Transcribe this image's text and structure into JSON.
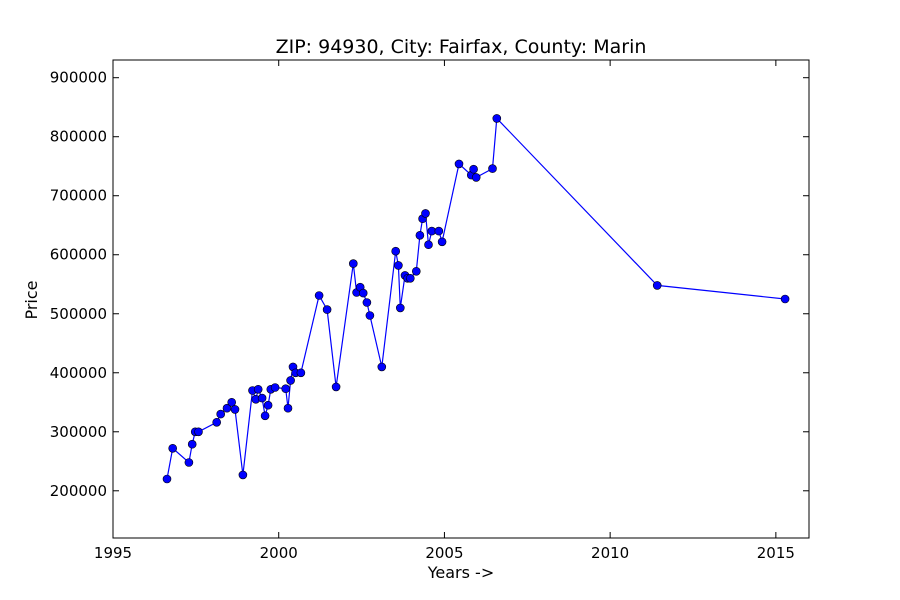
{
  "chart_data": {
    "type": "line",
    "title": "ZIP: 94930, City: Fairfax, County: Marin",
    "xlabel": "Years ->",
    "ylabel": "Price",
    "xlim": [
      1995,
      2016
    ],
    "ylim": [
      120000,
      930000
    ],
    "xticks": [
      1995,
      2000,
      2005,
      2010,
      2015
    ],
    "yticks": [
      200000,
      300000,
      400000,
      500000,
      600000,
      700000,
      800000,
      900000
    ],
    "grid": false,
    "line_color": "#0000ff",
    "marker_color": "#0000ff",
    "series": [
      {
        "x": [
          1996.63,
          1996.8,
          1997.29,
          1997.39,
          1997.48,
          1997.58,
          1998.13,
          1998.25,
          1998.44,
          1998.58,
          1998.68,
          1998.92,
          1999.21,
          1999.31,
          1999.38,
          1999.5,
          1999.59,
          1999.68,
          1999.76,
          1999.89,
          2000.21,
          2000.28,
          2000.36,
          2000.43,
          2000.51,
          2000.67,
          2001.22,
          2001.46,
          2001.73,
          2002.25,
          2002.35,
          2002.46,
          2002.55,
          2002.66,
          2002.75,
          2003.11,
          2003.53,
          2003.61,
          2003.67,
          2003.81,
          2003.89,
          2003.97,
          2004.15,
          2004.26,
          2004.34,
          2004.43,
          2004.52,
          2004.62,
          2004.83,
          2004.93,
          2005.44,
          2005.81,
          2005.88,
          2005.96,
          2006.45,
          2006.58,
          2011.42,
          2015.28
        ],
        "y": [
          220000,
          272000,
          248000,
          279000,
          300000,
          300000,
          316000,
          330000,
          340000,
          350000,
          338000,
          227000,
          370000,
          355000,
          372000,
          357000,
          327000,
          345000,
          372000,
          375000,
          373000,
          340000,
          387000,
          410000,
          400000,
          400000,
          531000,
          507000,
          376000,
          585000,
          536000,
          545000,
          535000,
          519000,
          497000,
          410000,
          606000,
          582000,
          510000,
          565000,
          560000,
          560000,
          572000,
          633000,
          661000,
          670000,
          617000,
          640000,
          640000,
          622000,
          754000,
          735000,
          745000,
          731000,
          746000,
          831000,
          548000,
          525000
        ]
      }
    ]
  }
}
